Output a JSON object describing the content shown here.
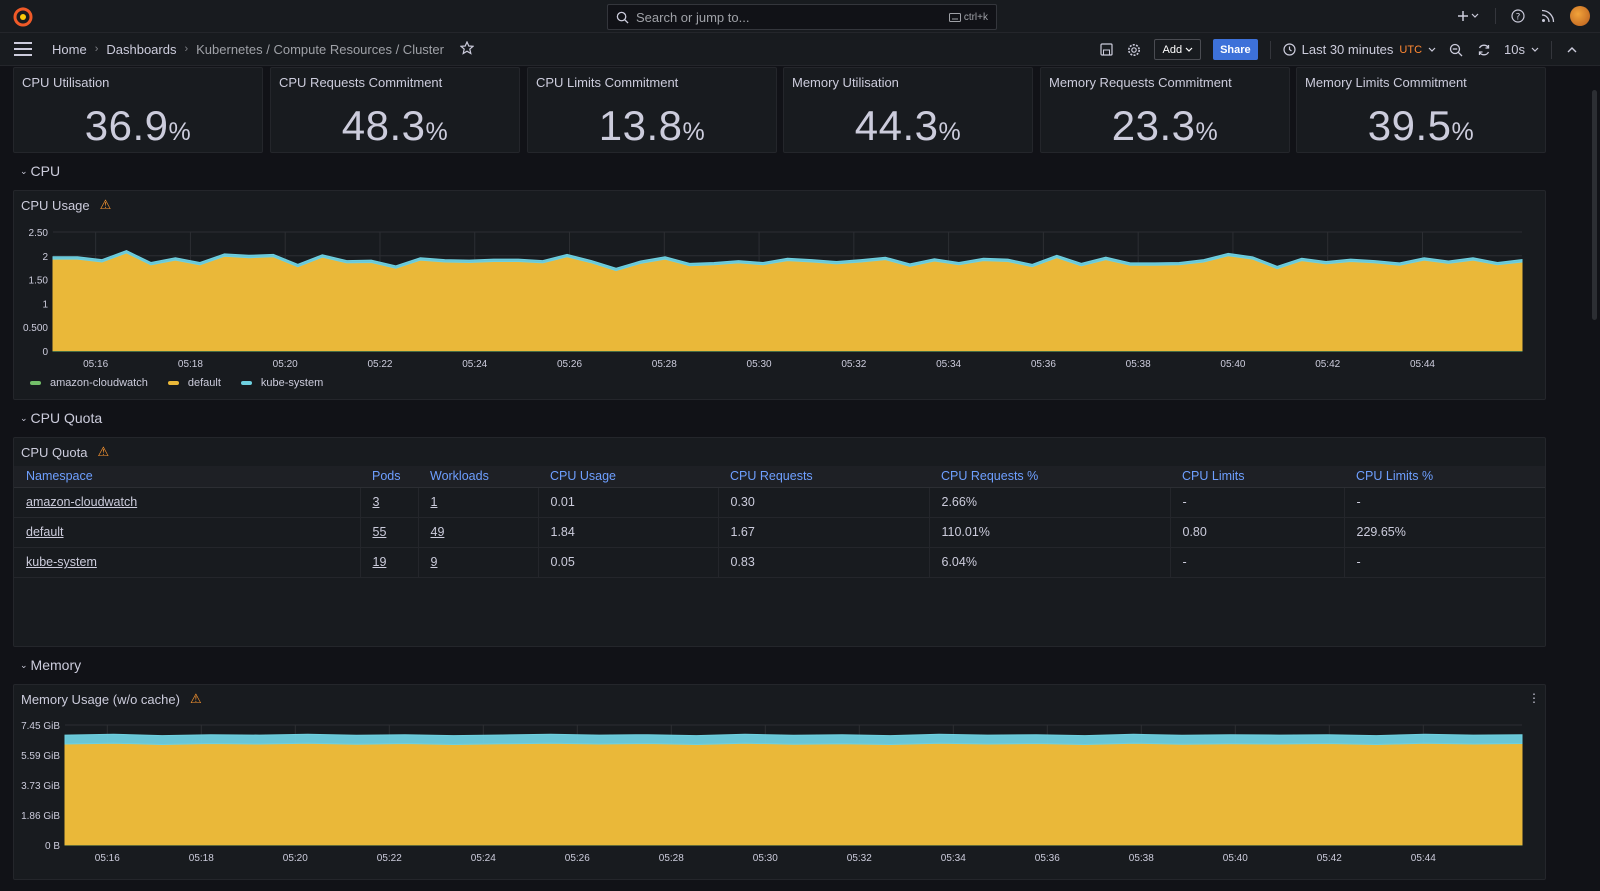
{
  "topbar": {
    "search_placeholder": "Search or jump to...",
    "search_shortcut": "ctrl+k"
  },
  "breadcrumb": {
    "home": "Home",
    "dashboards": "Dashboards",
    "current": "Kubernetes / Compute Resources / Cluster"
  },
  "toolbar": {
    "add_label": "Add",
    "share_label": "Share",
    "time_range": "Last 30 minutes",
    "timezone": "UTC",
    "refresh_interval": "10s"
  },
  "stats": [
    {
      "title": "CPU Utilisation",
      "value": "36.9",
      "unit": "%"
    },
    {
      "title": "CPU Requests Commitment",
      "value": "48.3",
      "unit": "%"
    },
    {
      "title": "CPU Limits Commitment",
      "value": "13.8",
      "unit": "%"
    },
    {
      "title": "Memory Utilisation",
      "value": "44.3",
      "unit": "%"
    },
    {
      "title": "Memory Requests Commitment",
      "value": "23.3",
      "unit": "%"
    },
    {
      "title": "Memory Limits Commitment",
      "value": "39.5",
      "unit": "%"
    }
  ],
  "rows": {
    "cpu": "CPU",
    "cpu_quota": "CPU Quota",
    "memory": "Memory"
  },
  "cpu_panel": {
    "title": "CPU Usage"
  },
  "quota_panel": {
    "title": "CPU Quota"
  },
  "memory_panel": {
    "title": "Memory Usage (w/o cache)"
  },
  "colors": {
    "amazon_cloudwatch": "#73bf69",
    "default": "#eab839",
    "kube_system": "#6ed0e0"
  },
  "chart_data": [
    {
      "type": "area",
      "title": "CPU Usage",
      "ylim": [
        0,
        2.5
      ],
      "yticks": [
        "0",
        "0.500",
        "1",
        "1.50",
        "2",
        "2.50"
      ],
      "yticks_values": [
        0,
        0.5,
        1,
        1.5,
        2,
        2.5
      ],
      "xticks": [
        "05:16",
        "05:18",
        "05:20",
        "05:22",
        "05:24",
        "05:26",
        "05:28",
        "05:30",
        "05:32",
        "05:34",
        "05:36",
        "05:38",
        "05:40",
        "05:42",
        "05:44"
      ],
      "legend": [
        "amazon-cloudwatch",
        "default",
        "kube-system"
      ],
      "series": [
        {
          "name": "amazon-cloudwatch",
          "values": [
            0.01,
            0.01,
            0.01,
            0.01,
            0.01,
            0.01,
            0.01,
            0.01,
            0.01,
            0.01,
            0.01,
            0.01,
            0.01,
            0.01,
            0.01,
            0.01,
            0.01,
            0.01,
            0.01,
            0.01,
            0.01,
            0.01,
            0.01,
            0.01,
            0.01,
            0.01,
            0.01,
            0.01,
            0.01,
            0.01,
            0.01,
            0.01,
            0.01,
            0.01,
            0.01,
            0.01,
            0.01,
            0.01,
            0.01,
            0.01,
            0.01,
            0.01,
            0.01,
            0.01,
            0.01,
            0.01,
            0.01,
            0.01,
            0.01,
            0.01,
            0.01,
            0.01,
            0.01,
            0.01,
            0.01,
            0.01,
            0.01,
            0.01,
            0.01,
            0.01,
            0.01
          ]
        },
        {
          "name": "default",
          "values": [
            1.92,
            1.92,
            1.86,
            2.05,
            1.8,
            1.9,
            1.8,
            1.98,
            1.95,
            1.97,
            1.76,
            1.96,
            1.84,
            1.85,
            1.73,
            1.9,
            1.86,
            1.85,
            1.87,
            1.87,
            1.84,
            1.97,
            1.84,
            1.68,
            1.83,
            1.92,
            1.78,
            1.8,
            1.84,
            1.8,
            1.89,
            1.86,
            1.82,
            1.86,
            1.91,
            1.77,
            1.88,
            1.8,
            1.89,
            1.87,
            1.76,
            1.95,
            1.78,
            1.91,
            1.79,
            1.79,
            1.8,
            1.86,
            1.99,
            1.92,
            1.72,
            1.89,
            1.82,
            1.87,
            1.84,
            1.79,
            1.9,
            1.83,
            1.9,
            1.8,
            1.86
          ]
        },
        {
          "name": "kube-system",
          "values": [
            0.05,
            0.05,
            0.05,
            0.05,
            0.05,
            0.05,
            0.05,
            0.05,
            0.05,
            0.05,
            0.05,
            0.05,
            0.05,
            0.05,
            0.05,
            0.05,
            0.05,
            0.05,
            0.05,
            0.05,
            0.05,
            0.05,
            0.05,
            0.05,
            0.05,
            0.05,
            0.05,
            0.05,
            0.05,
            0.05,
            0.05,
            0.05,
            0.05,
            0.05,
            0.05,
            0.05,
            0.05,
            0.05,
            0.05,
            0.05,
            0.05,
            0.05,
            0.05,
            0.05,
            0.05,
            0.05,
            0.05,
            0.05,
            0.05,
            0.05,
            0.05,
            0.05,
            0.05,
            0.05,
            0.05,
            0.05,
            0.05,
            0.05,
            0.05,
            0.05,
            0.05
          ]
        }
      ]
    },
    {
      "type": "table",
      "title": "CPU Quota",
      "columns": [
        "Namespace",
        "Pods",
        "Workloads",
        "CPU Usage",
        "CPU Requests",
        "CPU Requests %",
        "CPU Limits",
        "CPU Limits %"
      ],
      "rows": [
        [
          "amazon-cloudwatch",
          "3",
          "1",
          "0.01",
          "0.30",
          "2.66%",
          "-",
          "-"
        ],
        [
          "default",
          "55",
          "49",
          "1.84",
          "1.67",
          "110.01%",
          "0.80",
          "229.65%"
        ],
        [
          "kube-system",
          "19",
          "9",
          "0.05",
          "0.83",
          "6.04%",
          "-",
          "-"
        ]
      ]
    },
    {
      "type": "area",
      "title": "Memory Usage (w/o cache)",
      "ylim": [
        0,
        7.45
      ],
      "yticks": [
        "0 B",
        "1.86 GiB",
        "3.73 GiB",
        "5.59 GiB",
        "7.45 GiB"
      ],
      "yticks_values": [
        0,
        1.86,
        3.73,
        5.59,
        7.45
      ],
      "xticks": [
        "05:16",
        "05:18",
        "05:20",
        "05:22",
        "05:24",
        "05:26",
        "05:28",
        "05:30",
        "05:32",
        "05:34",
        "05:36",
        "05:38",
        "05:40",
        "05:42",
        "05:44"
      ],
      "series": [
        {
          "name": "amazon-cloudwatch",
          "values": [
            0.02,
            0.02,
            0.02,
            0.02,
            0.02,
            0.02,
            0.02,
            0.02,
            0.02,
            0.02,
            0.02,
            0.02,
            0.02,
            0.02,
            0.02,
            0.02,
            0.02,
            0.02,
            0.02,
            0.02,
            0.02,
            0.02,
            0.02,
            0.02,
            0.02,
            0.02,
            0.02,
            0.02,
            0.02,
            0.02,
            0.02
          ]
        },
        {
          "name": "default",
          "values": [
            6.25,
            6.3,
            6.22,
            6.28,
            6.25,
            6.3,
            6.24,
            6.28,
            6.22,
            6.26,
            6.3,
            6.25,
            6.28,
            6.22,
            6.3,
            6.24,
            6.27,
            6.22,
            6.3,
            6.25,
            6.28,
            6.22,
            6.3,
            6.24,
            6.27,
            6.25,
            6.28,
            6.22,
            6.3,
            6.25,
            6.28
          ]
        },
        {
          "name": "kube-system",
          "values": [
            0.55,
            0.55,
            0.55,
            0.55,
            0.55,
            0.55,
            0.55,
            0.55,
            0.55,
            0.55,
            0.55,
            0.55,
            0.55,
            0.55,
            0.55,
            0.55,
            0.55,
            0.55,
            0.55,
            0.55,
            0.55,
            0.55,
            0.55,
            0.55,
            0.55,
            0.55,
            0.55,
            0.55,
            0.55,
            0.55,
            0.55
          ]
        }
      ]
    }
  ]
}
